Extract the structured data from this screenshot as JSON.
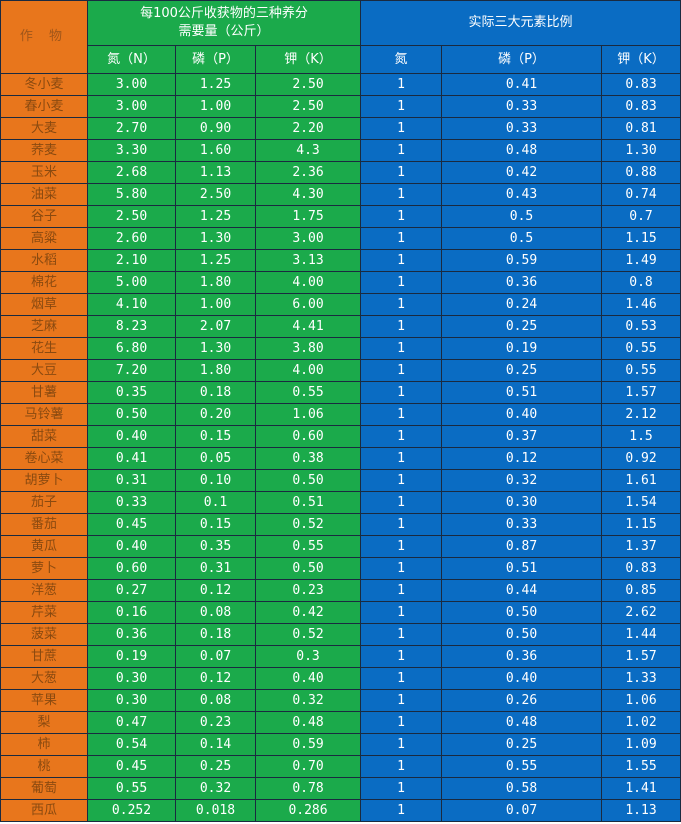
{
  "colors": {
    "crop": "#E8761C",
    "need": "#1BAA4B",
    "ratio": "#0A6CC3"
  },
  "header": {
    "crop": "作 物",
    "need_group": "每100公斤收获物的三种养分需要量（公斤）",
    "ratio_group": "实际三大元素比例",
    "need_cols": [
      "氮（N）",
      "磷（P）",
      "钾（K）"
    ],
    "ratio_cols": [
      "氮",
      "磷（P）",
      "钾（K）"
    ]
  },
  "rows": [
    [
      "冬小麦",
      "3.00",
      "1.25",
      "2.50",
      "1",
      "0.41",
      "0.83"
    ],
    [
      "春小麦",
      "3.00",
      "1.00",
      "2.50",
      "1",
      "0.33",
      "0.83"
    ],
    [
      "大麦",
      "2.70",
      "0.90",
      "2.20",
      "1",
      "0.33",
      "0.81"
    ],
    [
      "荞麦",
      "3.30",
      "1.60",
      "4.3",
      "1",
      "0.48",
      "1.30"
    ],
    [
      "玉米",
      "2.68",
      "1.13",
      "2.36",
      "1",
      "0.42",
      "0.88"
    ],
    [
      "油菜",
      "5.80",
      "2.50",
      "4.30",
      "1",
      "0.43",
      "0.74"
    ],
    [
      "谷子",
      "2.50",
      "1.25",
      "1.75",
      "1",
      "0.5",
      "0.7"
    ],
    [
      "高粱",
      "2.60",
      "1.30",
      "3.00",
      "1",
      "0.5",
      "1.15"
    ],
    [
      "水稻",
      "2.10",
      "1.25",
      "3.13",
      "1",
      "0.59",
      "1.49"
    ],
    [
      "棉花",
      "5.00",
      "1.80",
      "4.00",
      "1",
      "0.36",
      "0.8"
    ],
    [
      "烟草",
      "4.10",
      "1.00",
      "6.00",
      "1",
      "0.24",
      "1.46"
    ],
    [
      "芝麻",
      "8.23",
      "2.07",
      "4.41",
      "1",
      "0.25",
      "0.53"
    ],
    [
      "花生",
      "6.80",
      "1.30",
      "3.80",
      "1",
      "0.19",
      "0.55"
    ],
    [
      "大豆",
      "7.20",
      "1.80",
      "4.00",
      "1",
      "0.25",
      "0.55"
    ],
    [
      "甘薯",
      "0.35",
      "0.18",
      "0.55",
      "1",
      "0.51",
      "1.57"
    ],
    [
      "马铃薯",
      "0.50",
      "0.20",
      "1.06",
      "1",
      "0.40",
      "2.12"
    ],
    [
      "甜菜",
      "0.40",
      "0.15",
      "0.60",
      "1",
      "0.37",
      "1.5"
    ],
    [
      "卷心菜",
      "0.41",
      "0.05",
      "0.38",
      "1",
      "0.12",
      "0.92"
    ],
    [
      "胡萝卜",
      "0.31",
      "0.10",
      "0.50",
      "1",
      "0.32",
      "1.61"
    ],
    [
      "茄子",
      "0.33",
      "0.1",
      "0.51",
      "1",
      "0.30",
      "1.54"
    ],
    [
      "番茄",
      "0.45",
      "0.15",
      "0.52",
      "1",
      "0.33",
      "1.15"
    ],
    [
      "黄瓜",
      "0.40",
      "0.35",
      "0.55",
      "1",
      "0.87",
      "1.37"
    ],
    [
      "萝卜",
      "0.60",
      "0.31",
      "0.50",
      "1",
      "0.51",
      "0.83"
    ],
    [
      "洋葱",
      "0.27",
      "0.12",
      "0.23",
      "1",
      "0.44",
      "0.85"
    ],
    [
      "芹菜",
      "0.16",
      "0.08",
      "0.42",
      "1",
      "0.50",
      "2.62"
    ],
    [
      "菠菜",
      "0.36",
      "0.18",
      "0.52",
      "1",
      "0.50",
      "1.44"
    ],
    [
      "甘蔗",
      "0.19",
      "0.07",
      "0.3",
      "1",
      "0.36",
      "1.57"
    ],
    [
      "大葱",
      "0.30",
      "0.12",
      "0.40",
      "1",
      "0.40",
      "1.33"
    ],
    [
      "苹果",
      "0.30",
      "0.08",
      "0.32",
      "1",
      "0.26",
      "1.06"
    ],
    [
      "梨",
      "0.47",
      "0.23",
      "0.48",
      "1",
      "0.48",
      "1.02"
    ],
    [
      "柿",
      "0.54",
      "0.14",
      "0.59",
      "1",
      "0.25",
      "1.09"
    ],
    [
      "桃",
      "0.45",
      "0.25",
      "0.70",
      "1",
      "0.55",
      "1.55"
    ],
    [
      "葡萄",
      "0.55",
      "0.32",
      "0.78",
      "1",
      "0.58",
      "1.41"
    ],
    [
      "西瓜",
      "0.252",
      "0.018",
      "0.286",
      "1",
      "0.07",
      "1.13"
    ]
  ]
}
